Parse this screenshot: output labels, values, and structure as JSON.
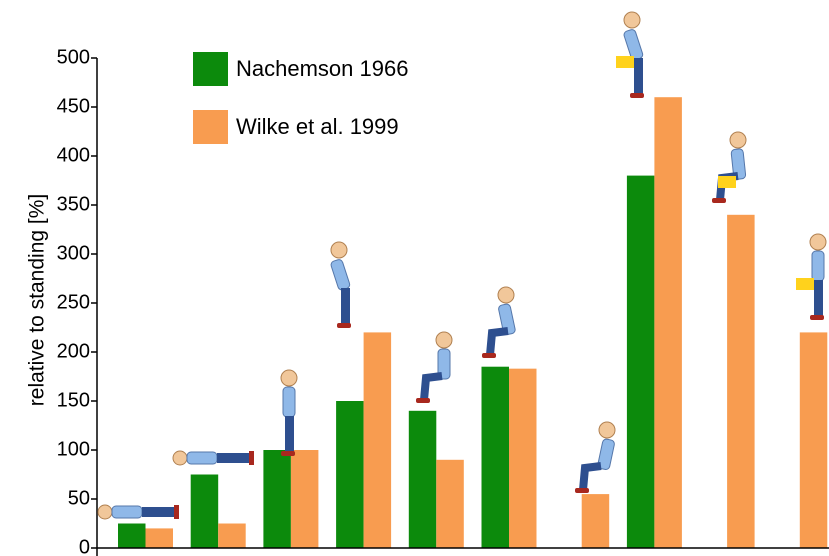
{
  "chart_data": {
    "type": "bar",
    "y_label": "relative to standing [%]",
    "categories": [
      null,
      null,
      null,
      null,
      null,
      null,
      null,
      null,
      null,
      null
    ],
    "series": [
      {
        "name": "Nachemson 1966",
        "color": "#0c8a0c",
        "values": [
          25,
          75,
          100,
          150,
          140,
          185,
          null,
          380,
          null,
          null
        ]
      },
      {
        "name": "Wilke et al. 1999",
        "color": "#f89c50",
        "values": [
          20,
          25,
          100,
          220,
          90,
          183,
          55,
          460,
          340,
          220
        ]
      }
    ],
    "ylim": [
      0,
      500
    ],
    "yticks": [
      0,
      50,
      100,
      150,
      200,
      250,
      300,
      350,
      400,
      450,
      500
    ]
  }
}
